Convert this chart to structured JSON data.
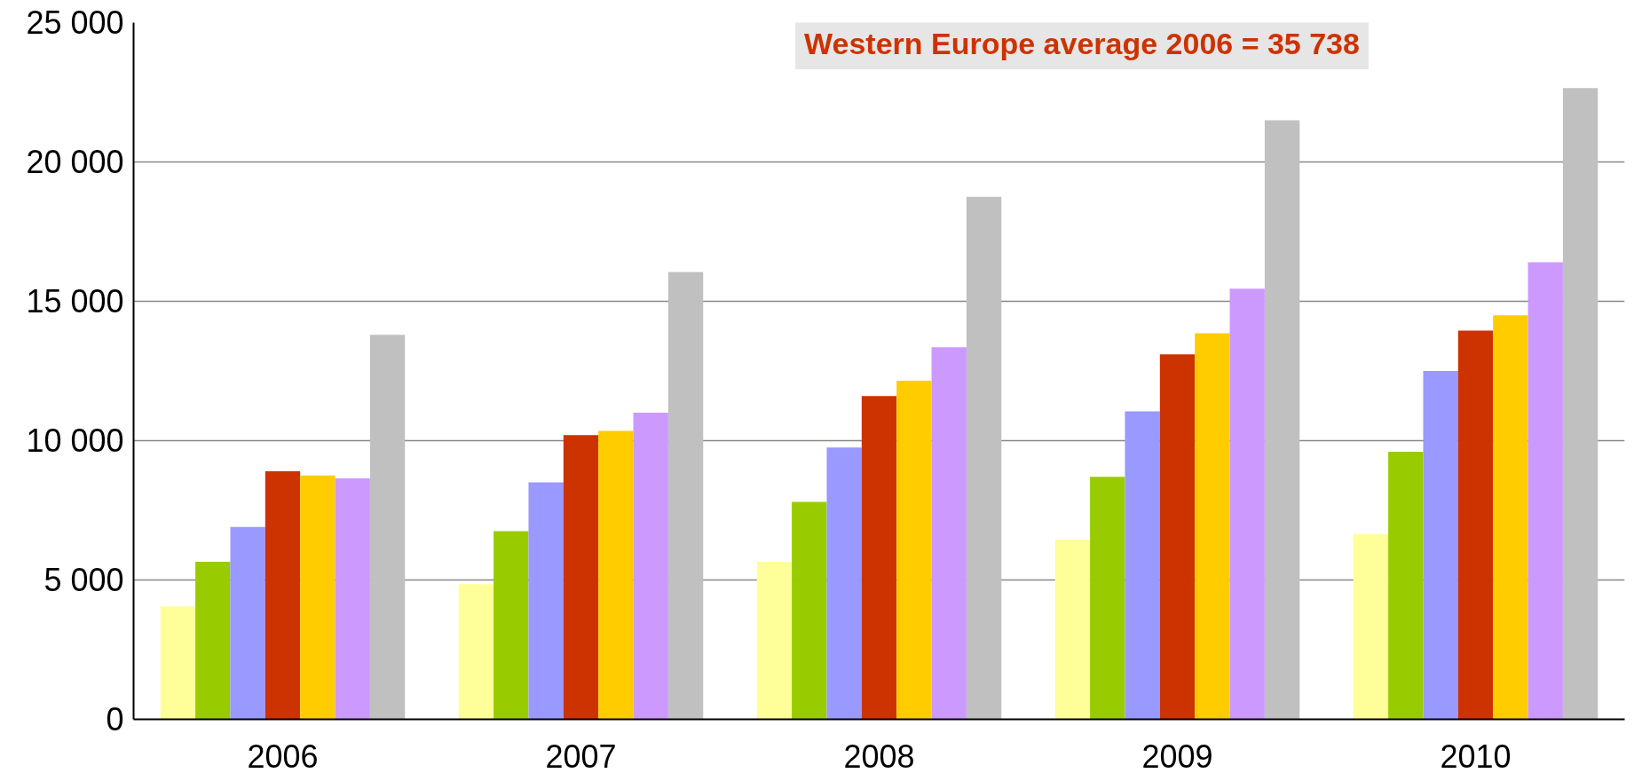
{
  "chart_data": {
    "type": "bar",
    "categories": [
      "2006",
      "2007",
      "2008",
      "2009",
      "2010"
    ],
    "series": [
      {
        "color": "#ffff99",
        "values": [
          4050,
          4850,
          5650,
          6450,
          6650
        ]
      },
      {
        "color": "#99cc00",
        "values": [
          5650,
          6750,
          7800,
          8700,
          9600
        ]
      },
      {
        "color": "#9999ff",
        "values": [
          6900,
          8500,
          9750,
          11050,
          12500
        ]
      },
      {
        "color": "#cc3300",
        "values": [
          8900,
          10200,
          11600,
          13100,
          13950
        ]
      },
      {
        "color": "#ffcc00",
        "values": [
          8750,
          10350,
          12150,
          13850,
          14500
        ]
      },
      {
        "color": "#cc99ff",
        "values": [
          8650,
          11000,
          13350,
          15450,
          16400
        ]
      },
      {
        "color": "#c0c0c0",
        "values": [
          13800,
          16050,
          18750,
          21500,
          22650
        ]
      }
    ],
    "ylim": [
      0,
      25000
    ],
    "yticks": [
      {
        "value": 0,
        "label": "0"
      },
      {
        "value": 5000,
        "label": "5 000"
      },
      {
        "value": 10000,
        "label": "10 000"
      },
      {
        "value": 15000,
        "label": "15 000"
      },
      {
        "value": 20000,
        "label": "20 000"
      },
      {
        "value": 25000,
        "label": "25 000"
      }
    ],
    "grid": "y",
    "annotations": [
      "Western Europe average 2006 = 35 738"
    ]
  }
}
